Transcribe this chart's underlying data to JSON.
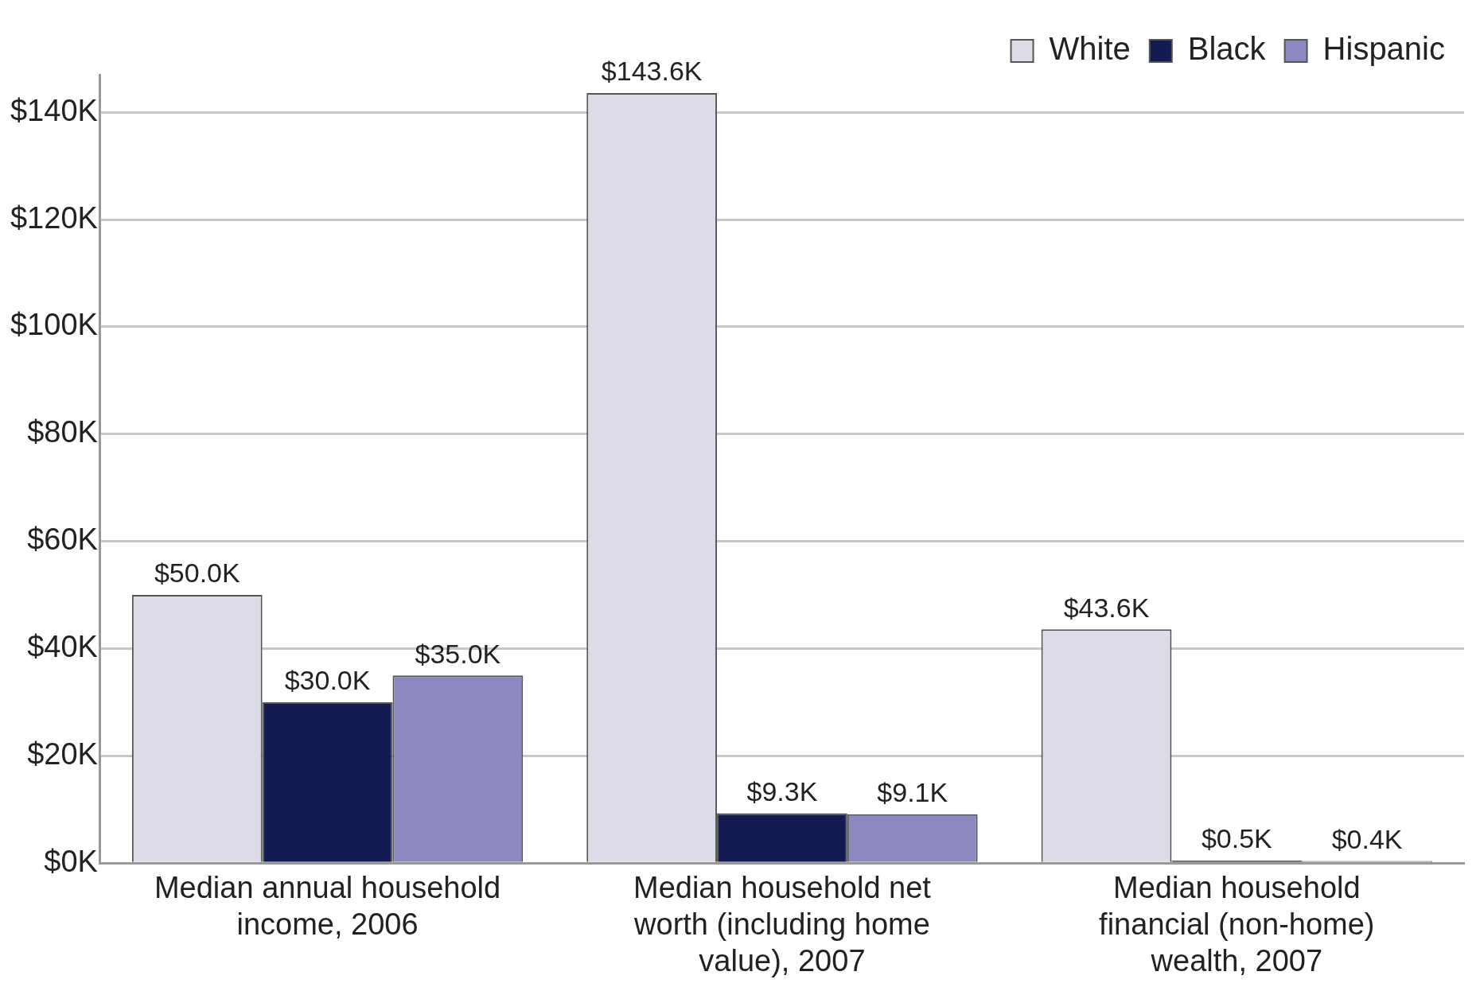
{
  "chart_data": {
    "type": "bar",
    "categories": [
      "Median annual household income, 2006",
      "Median household net worth (including home value), 2007",
      "Median household financial (non-home) wealth, 2007"
    ],
    "series": [
      {
        "name": "White",
        "color": "#dcdce8",
        "values": [
          50.0,
          143.6,
          43.6
        ],
        "value_labels": [
          "$50.0K",
          "$143.6K",
          "$43.6K"
        ]
      },
      {
        "name": "Black",
        "color": "#141a52",
        "values": [
          30.0,
          9.3,
          0.5
        ],
        "value_labels": [
          "$30.0K",
          "$9.3K",
          "$0.5K"
        ]
      },
      {
        "name": "Hispanic",
        "color": "#8c88c0",
        "values": [
          35.0,
          9.1,
          0.4
        ],
        "value_labels": [
          "$35.0K",
          "$9.1K",
          "$0.4K"
        ]
      }
    ],
    "ylim": [
      0,
      147
    ],
    "yticks": [
      {
        "value": 0,
        "label": "$0K"
      },
      {
        "value": 20,
        "label": "$20K"
      },
      {
        "value": 40,
        "label": "$40K"
      },
      {
        "value": 60,
        "label": "$60K"
      },
      {
        "value": 80,
        "label": "$80K"
      },
      {
        "value": 100,
        "label": "$100K"
      },
      {
        "value": 120,
        "label": "$120K"
      },
      {
        "value": 140,
        "label": "$140K"
      }
    ],
    "grid": "y",
    "legend": "top right"
  }
}
